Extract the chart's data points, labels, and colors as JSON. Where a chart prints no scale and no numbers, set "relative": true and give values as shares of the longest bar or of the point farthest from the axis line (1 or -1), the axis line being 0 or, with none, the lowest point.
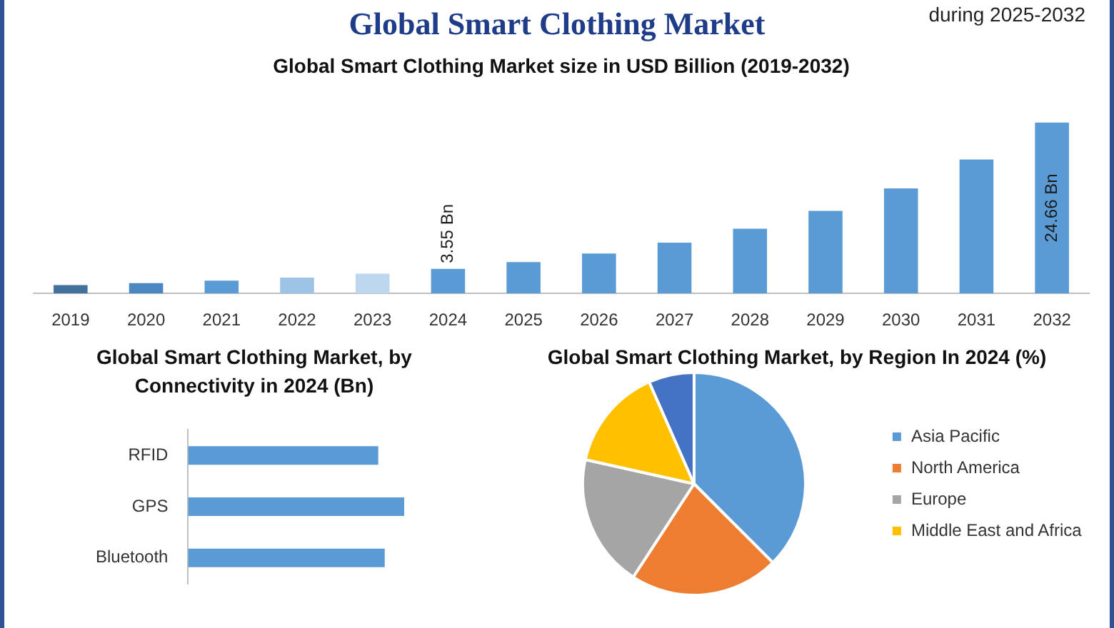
{
  "chart_data": [
    {
      "type": "bar",
      "title": "Global Smart Clothing Market size in USD Billion (2019-2032)",
      "annotations": [
        "Global Smart Clothing Market",
        "during 2025-2032"
      ],
      "categories": [
        "2019",
        "2020",
        "2021",
        "2022",
        "2023",
        "2024",
        "2025",
        "2026",
        "2027",
        "2028",
        "2029",
        "2030",
        "2031",
        "2032"
      ],
      "values": [
        1.2,
        1.5,
        1.85,
        2.3,
        2.85,
        3.55,
        4.52,
        5.76,
        7.34,
        9.35,
        11.91,
        15.17,
        19.33,
        24.66
      ],
      "colors": [
        "#41719c",
        "#4a86bf",
        "#5b9bd5",
        "#9dc3e6",
        "#bdd7ee",
        "#5b9bd5",
        "#5b9bd5",
        "#5b9bd5",
        "#5b9bd5",
        "#5b9bd5",
        "#5b9bd5",
        "#5b9bd5",
        "#5b9bd5",
        "#5b9bd5"
      ],
      "value_labels": [
        null,
        null,
        null,
        null,
        null,
        "3.55 Bn",
        null,
        null,
        null,
        null,
        null,
        null,
        null,
        "24.66 Bn"
      ]
    },
    {
      "type": "bar",
      "orientation": "horizontal",
      "title": "Global Smart Clothing Market, by Connectivity in 2024 (Bn)",
      "relative": true,
      "categories": [
        "RFID",
        "GPS",
        "Bluetooth"
      ],
      "values": [
        0.88,
        1,
        0.91
      ],
      "color": "#5b9bd5"
    },
    {
      "type": "pie",
      "title": "Global Smart Clothing Market, by Region In 2024 (%)",
      "legend": "right",
      "categories": [
        "Asia Pacific",
        "North America",
        "Europe",
        "Middle East and Africa",
        null
      ],
      "values": [
        37.5,
        21.7,
        19.3,
        14.9,
        6.6
      ],
      "colors": [
        "#5b9bd5",
        "#ed7d31",
        "#a5a5a5",
        "#ffc000",
        "#4472c4"
      ]
    }
  ]
}
